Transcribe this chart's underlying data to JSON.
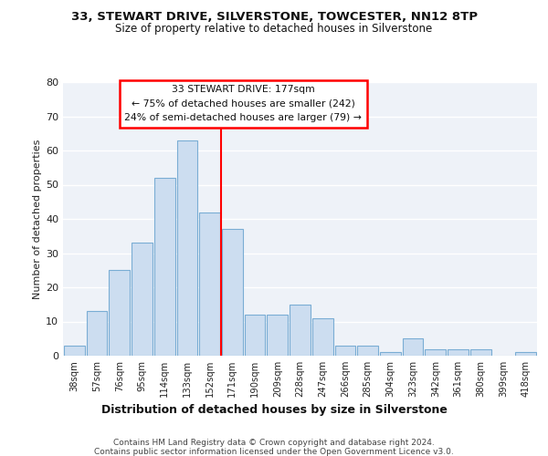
{
  "title1": "33, STEWART DRIVE, SILVERSTONE, TOWCESTER, NN12 8TP",
  "title2": "Size of property relative to detached houses in Silverstone",
  "xlabel": "Distribution of detached houses by size in Silverstone",
  "ylabel": "Number of detached properties",
  "bar_color": "#ccddf0",
  "bar_edge_color": "#7aadd4",
  "background_color": "#eef2f8",
  "grid_color": "#ffffff",
  "categories": [
    "38sqm",
    "57sqm",
    "76sqm",
    "95sqm",
    "114sqm",
    "133sqm",
    "152sqm",
    "171sqm",
    "190sqm",
    "209sqm",
    "228sqm",
    "247sqm",
    "266sqm",
    "285sqm",
    "304sqm",
    "323sqm",
    "342sqm",
    "361sqm",
    "380sqm",
    "399sqm",
    "418sqm"
  ],
  "values": [
    3,
    13,
    25,
    33,
    52,
    63,
    42,
    37,
    12,
    12,
    15,
    11,
    3,
    3,
    1,
    5,
    2,
    2,
    2,
    0,
    1
  ],
  "property_line_label": "33 STEWART DRIVE: 177sqm",
  "annotation_line1": "← 75% of detached houses are smaller (242)",
  "annotation_line2": "24% of semi-detached houses are larger (79) →",
  "ylim": [
    0,
    80
  ],
  "yticks": [
    0,
    10,
    20,
    30,
    40,
    50,
    60,
    70,
    80
  ],
  "footer1": "Contains HM Land Registry data © Crown copyright and database right 2024.",
  "footer2": "Contains public sector information licensed under the Open Government Licence v3.0."
}
